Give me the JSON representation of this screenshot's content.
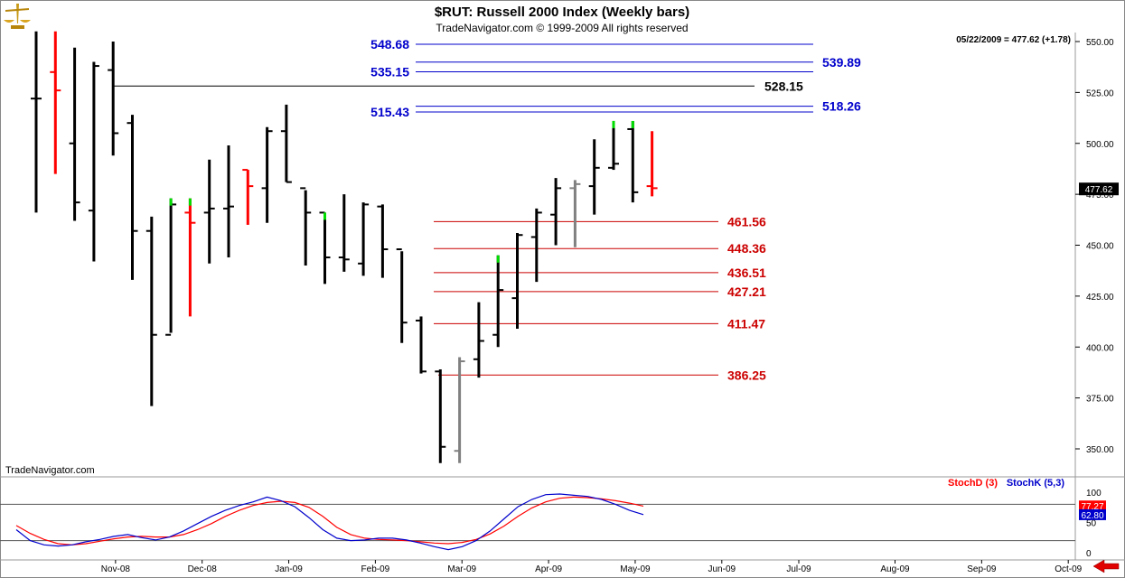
{
  "header": {
    "title": "$RUT:  Russell 2000 Index  (Weekly bars)",
    "subtitle": "TradeNavigator.com © 1999-2009 All rights reserved",
    "last_value_readout": "05/22/2009 = 477.62 (+1.78)",
    "watermark": "TradeNavigator.com",
    "logo_icon": "brass-scale-logo-icon",
    "nav_icon": "red-arrow-left-icon"
  },
  "colors": {
    "bar_up": "#000000",
    "bar_down": "#ff0000",
    "bar_green_tick": "#00dd00",
    "bar_gray": "#808080",
    "resistance": "#0000cc",
    "support": "#cc0000",
    "stoch_d": "#ff0000",
    "stoch_k": "#0000cc"
  },
  "chart_data": [
    {
      "type": "ohlc",
      "title": "$RUT:  Russell 2000 Index  (Weekly bars)",
      "ylim": [
        340,
        555
      ],
      "y_ticks": [
        "550.00",
        "525.00",
        "500.00",
        "475.00",
        "450.00",
        "425.00",
        "400.00",
        "375.00",
        "350.00"
      ],
      "y_tick_values": [
        550,
        525,
        500,
        475,
        450,
        425,
        400,
        375,
        350
      ],
      "x_ticks": [
        "Nov-08",
        "Dec-08",
        "Jan-09",
        "Feb-09",
        "Mar-09",
        "Apr-09",
        "May-09",
        "Jun-09",
        "Jul-09",
        "Aug-09",
        "Sep-09",
        "Oct-09"
      ],
      "x_tick_weeks": [
        4.5,
        9,
        13.5,
        18,
        22.5,
        27,
        31.5,
        36,
        40,
        45,
        49.5,
        54
      ],
      "last_price_label": "477.62",
      "last_price": 477.62,
      "bars": [
        {
          "w": 0,
          "o": 522,
          "h": 555,
          "l": 466,
          "c": 522,
          "color": "black"
        },
        {
          "w": 1,
          "o": 535,
          "h": 555,
          "l": 485,
          "c": 526,
          "color": "red"
        },
        {
          "w": 2,
          "o": 500,
          "h": 547,
          "l": 462,
          "c": 471,
          "color": "black"
        },
        {
          "w": 3,
          "o": 467,
          "h": 540,
          "l": 442,
          "c": 538,
          "color": "black"
        },
        {
          "w": 4,
          "o": 536,
          "h": 550,
          "l": 494,
          "c": 505,
          "color": "black"
        },
        {
          "w": 5,
          "o": 510,
          "h": 514,
          "l": 433,
          "c": 457,
          "color": "black"
        },
        {
          "w": 6,
          "o": 457,
          "h": 464,
          "l": 371,
          "c": 406,
          "color": "black"
        },
        {
          "w": 7,
          "o": 406,
          "h": 473,
          "l": 407,
          "c": 470,
          "color": "black"
        },
        {
          "w": 8,
          "o": 466,
          "h": 473,
          "l": 415,
          "c": 461,
          "color": "red"
        },
        {
          "w": 9,
          "o": 466,
          "h": 492,
          "l": 441,
          "c": 468,
          "color": "black"
        },
        {
          "w": 10,
          "o": 468,
          "h": 499,
          "l": 444,
          "c": 469,
          "color": "black"
        },
        {
          "w": 11,
          "o": 487,
          "h": 487,
          "l": 460,
          "c": 479,
          "color": "red"
        },
        {
          "w": 12,
          "o": 478,
          "h": 508,
          "l": 461,
          "c": 506,
          "color": "black"
        },
        {
          "w": 13,
          "o": 506,
          "h": 519,
          "l": 481,
          "c": 481,
          "color": "black"
        },
        {
          "w": 14,
          "o": 478,
          "h": 477,
          "l": 440,
          "c": 466,
          "color": "black"
        },
        {
          "w": 15,
          "o": 466,
          "h": 466,
          "l": 431,
          "c": 444,
          "color": "black"
        },
        {
          "w": 16,
          "o": 444,
          "h": 475,
          "l": 437,
          "c": 443,
          "color": "black"
        },
        {
          "w": 17,
          "o": 441,
          "h": 471,
          "l": 435,
          "c": 470,
          "color": "black"
        },
        {
          "w": 18,
          "o": 469,
          "h": 470,
          "l": 434,
          "c": 448,
          "color": "black"
        },
        {
          "w": 19,
          "o": 448,
          "h": 447,
          "l": 402,
          "c": 412,
          "color": "black"
        },
        {
          "w": 20,
          "o": 413,
          "h": 415,
          "l": 387,
          "c": 388,
          "color": "black"
        },
        {
          "w": 21,
          "o": 388,
          "h": 389,
          "l": 343,
          "c": 351,
          "color": "black"
        },
        {
          "w": 22,
          "o": 349,
          "h": 395,
          "l": 343,
          "c": 393,
          "color": "gray"
        },
        {
          "w": 23,
          "o": 394,
          "h": 422,
          "l": 385,
          "c": 403,
          "color": "black"
        },
        {
          "w": 24,
          "o": 406,
          "h": 445,
          "l": 400,
          "c": 428,
          "color": "black"
        },
        {
          "w": 25,
          "o": 424,
          "h": 456,
          "l": 409,
          "c": 455,
          "color": "black"
        },
        {
          "w": 26,
          "o": 454,
          "h": 468,
          "l": 432,
          "c": 466,
          "color": "black"
        },
        {
          "w": 27,
          "o": 465,
          "h": 483,
          "l": 450,
          "c": 478,
          "color": "black"
        },
        {
          "w": 28,
          "o": 478,
          "h": 482,
          "l": 449,
          "c": 480,
          "color": "gray"
        },
        {
          "w": 29,
          "o": 479,
          "h": 502,
          "l": 465,
          "c": 488,
          "color": "black"
        },
        {
          "w": 30,
          "o": 488,
          "h": 511,
          "l": 487,
          "c": 490,
          "color": "black"
        },
        {
          "w": 31,
          "o": 507,
          "h": 511,
          "l": 471,
          "c": 476,
          "color": "black"
        },
        {
          "w": 32,
          "o": 479,
          "h": 506,
          "l": 474,
          "c": 478,
          "color": "red"
        }
      ],
      "fib_levels_blue": [
        {
          "value": 548.68,
          "label": "548.68"
        },
        {
          "value": 535.15,
          "label": "535.15"
        },
        {
          "value": 539.89,
          "label": "539.89"
        },
        {
          "value": 515.43,
          "label": "515.43"
        },
        {
          "value": 518.26,
          "label": "518.26"
        }
      ],
      "level_black": {
        "value": 528.15,
        "label": "528.15"
      },
      "fib_levels_red": [
        {
          "value": 461.56,
          "label": "461.56"
        },
        {
          "value": 448.36,
          "label": "448.36"
        },
        {
          "value": 436.51,
          "label": "436.51"
        },
        {
          "value": 427.21,
          "label": "427.21"
        },
        {
          "value": 411.47,
          "label": "411.47"
        },
        {
          "value": 386.25,
          "label": "386.25"
        }
      ]
    },
    {
      "type": "line",
      "legend": [
        "StochD (3)",
        "StochK (5,3)"
      ],
      "ylim": [
        0,
        100
      ],
      "y_ticks": [
        "100",
        "50",
        "0"
      ],
      "y_tick_values": [
        100,
        50,
        0
      ],
      "reference_levels": [
        80,
        20
      ],
      "value_labels": [
        "77.27",
        "62.80"
      ],
      "series": [
        {
          "name": "StochD (3)",
          "color": "#ff0000",
          "values": [
            45,
            32,
            22,
            15,
            13,
            15,
            19,
            23,
            26,
            27,
            26,
            26,
            30,
            38,
            48,
            60,
            70,
            78,
            83,
            85,
            83,
            75,
            60,
            42,
            30,
            24,
            22,
            21,
            20,
            18,
            16,
            15,
            17,
            22,
            31,
            44,
            60,
            74,
            84,
            90,
            92,
            91,
            89,
            86,
            82,
            77
          ]
        },
        {
          "name": "StochK (5,3)",
          "color": "#0000cc",
          "values": [
            38,
            20,
            13,
            11,
            13,
            18,
            22,
            27,
            30,
            25,
            21,
            26,
            36,
            48,
            60,
            70,
            78,
            84,
            92,
            86,
            76,
            58,
            38,
            24,
            20,
            21,
            24,
            24,
            21,
            16,
            10,
            5,
            10,
            20,
            36,
            56,
            76,
            88,
            96,
            97,
            95,
            93,
            88,
            80,
            70,
            63
          ]
        }
      ]
    }
  ]
}
